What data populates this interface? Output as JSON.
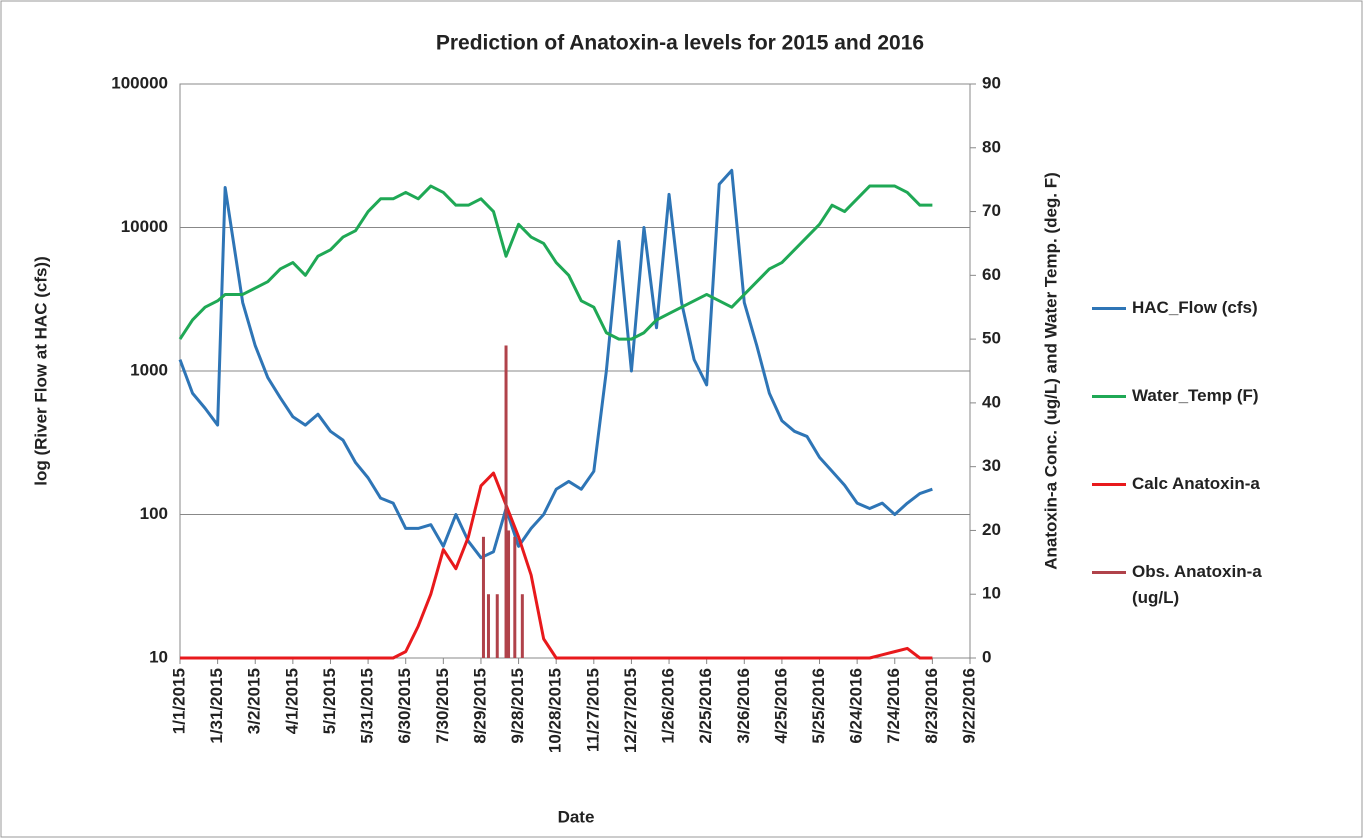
{
  "chart_data": {
    "type": "line",
    "title": "Prediction of Anatoxin-a levels for 2015 and 2016",
    "x_label": "Date",
    "y_label": "log (River Flow at HAC (cfs))",
    "y2_label": "Anatoxin-a Conc. (ug/L) and Water Temp. (deg. F)",
    "xlim": [
      "1/1/2015",
      "9/22/2016"
    ],
    "xticks": [
      "1/1/2015",
      "1/31/2015",
      "3/2/2015",
      "4/1/2015",
      "5/1/2015",
      "5/31/2015",
      "6/30/2015",
      "7/30/2015",
      "8/29/2015",
      "9/28/2015",
      "10/28/2015",
      "11/27/2015",
      "12/27/2015",
      "1/26/2016",
      "2/25/2016",
      "3/26/2016",
      "4/25/2016",
      "5/25/2016",
      "6/24/2016",
      "7/24/2016",
      "8/23/2016",
      "9/22/2016"
    ],
    "ylim": [
      10,
      100000
    ],
    "yticks": [
      10,
      100,
      1000,
      10000,
      100000
    ],
    "log_y": true,
    "grid": true,
    "y2lim": [
      0,
      90
    ],
    "y2ticks": [
      0,
      10,
      20,
      30,
      40,
      50,
      60,
      70,
      80,
      90
    ],
    "x": [
      "1/1/2015",
      "1/11/2015",
      "1/21/2015",
      "1/31/2015",
      "2/6/2015",
      "2/20/2015",
      "3/2/2015",
      "3/12/2015",
      "3/22/2015",
      "4/1/2015",
      "4/11/2015",
      "4/21/2015",
      "5/1/2015",
      "5/11/2015",
      "5/21/2015",
      "5/31/2015",
      "6/10/2015",
      "6/20/2015",
      "6/30/2015",
      "7/10/2015",
      "7/20/2015",
      "7/30/2015",
      "8/9/2015",
      "8/19/2015",
      "8/29/2015",
      "9/8/2015",
      "9/18/2015",
      "9/28/2015",
      "10/8/2015",
      "10/18/2015",
      "10/28/2015",
      "11/7/2015",
      "11/17/2015",
      "11/27/2015",
      "12/7/2015",
      "12/17/2015",
      "12/27/2015",
      "1/6/2016",
      "1/16/2016",
      "1/26/2016",
      "2/5/2016",
      "2/15/2016",
      "2/25/2016",
      "3/6/2016",
      "3/16/2016",
      "3/26/2016",
      "4/5/2016",
      "4/15/2016",
      "4/25/2016",
      "5/5/2016",
      "5/15/2016",
      "5/25/2016",
      "6/4/2016",
      "6/14/2016",
      "6/24/2016",
      "7/4/2016",
      "7/14/2016",
      "7/24/2016",
      "8/3/2016",
      "8/13/2016",
      "8/23/2016"
    ],
    "series": [
      {
        "name": "HAC_Flow (cfs)",
        "color": "#2e75b6",
        "axis": "y",
        "values": [
          1200,
          700,
          550,
          420,
          19000,
          3000,
          1500,
          900,
          650,
          480,
          420,
          500,
          380,
          330,
          230,
          180,
          130,
          120,
          80,
          80,
          85,
          60,
          100,
          65,
          50,
          55,
          110,
          60,
          80,
          100,
          150,
          170,
          150,
          200,
          1000,
          8000,
          1000,
          10000,
          2000,
          17000,
          3000,
          1200,
          800,
          20000,
          25000,
          3000,
          1500,
          700,
          450,
          380,
          350,
          250,
          200,
          160,
          120,
          110,
          120,
          100,
          120,
          140,
          150
        ]
      },
      {
        "name": "Water_Temp (F)",
        "color": "#1fa855",
        "axis": "y2",
        "values": [
          50,
          53,
          55,
          56,
          57,
          57,
          58,
          59,
          61,
          62,
          60,
          63,
          64,
          66,
          67,
          70,
          72,
          72,
          73,
          72,
          74,
          73,
          71,
          71,
          72,
          70,
          63,
          68,
          66,
          65,
          62,
          60,
          56,
          55,
          51,
          50,
          50,
          51,
          53,
          54,
          55,
          56,
          57,
          56,
          55,
          57,
          59,
          61,
          62,
          64,
          66,
          68,
          71,
          70,
          72,
          74,
          74,
          74,
          73,
          71,
          71
        ]
      },
      {
        "name": "Calc Anatoxin-a",
        "color": "#e8191c",
        "axis": "y2",
        "values": [
          0,
          0,
          0,
          0,
          0,
          0,
          0,
          0,
          0,
          0,
          0,
          0,
          0,
          0,
          0,
          0,
          0,
          0,
          1,
          5,
          10,
          17,
          14,
          19,
          27,
          29,
          24,
          19,
          13,
          3,
          0,
          0,
          0,
          0,
          0,
          0,
          0,
          0,
          0,
          0,
          0,
          0,
          0,
          0,
          0,
          0,
          0,
          0,
          0,
          0,
          0,
          0,
          0,
          0,
          0,
          0,
          0.5,
          1,
          1.5,
          0,
          0
        ]
      },
      {
        "name": "Obs. Anatoxin-a (ug/L)",
        "color": "#b0424a",
        "axis": "y2",
        "kind": "bar",
        "x": [
          "8/31/2015",
          "9/4/2015",
          "9/11/2015",
          "9/18/2015",
          "9/20/2015",
          "9/25/2015",
          "10/1/2015"
        ],
        "values": [
          19,
          10,
          10,
          49,
          20,
          19,
          10
        ]
      }
    ]
  }
}
